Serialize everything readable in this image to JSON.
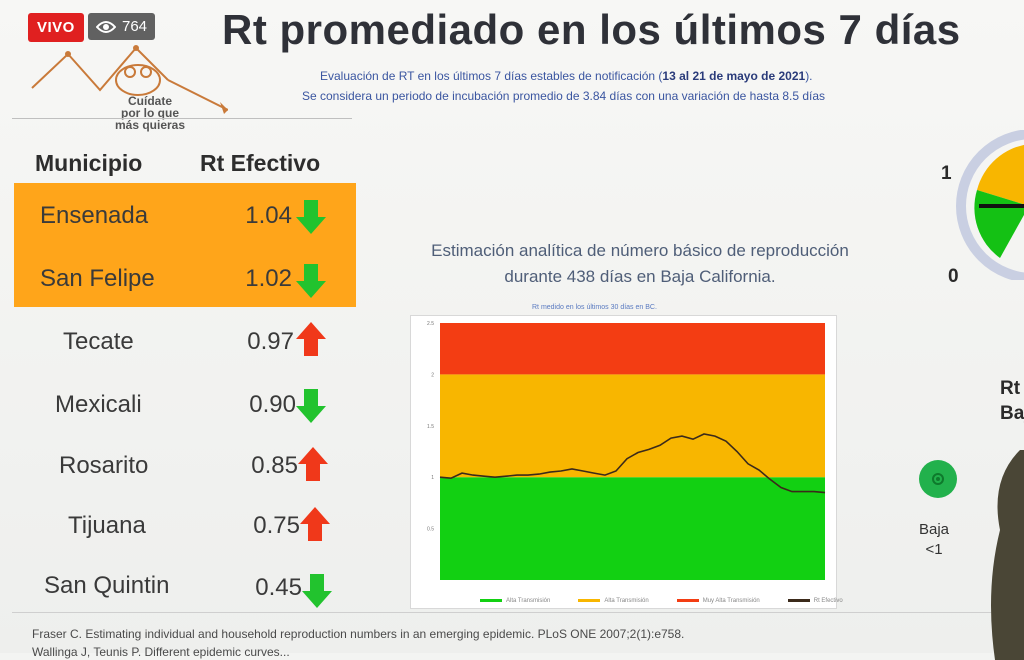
{
  "stream": {
    "live_label": "VIVO",
    "viewers": "764"
  },
  "logo": {
    "text": "Cuídate\npor lo que\nmás quieras"
  },
  "title": "Rt promediado en los últimos 7 días",
  "subtitle_line1_pre": "Evaluación de RT en los últimos 7 días estables de notificación (",
  "subtitle_line1_bold": "13 al 21 de mayo de 2021",
  "subtitle_line1_post": ").",
  "subtitle_line2": "Se considera un periodo de incubación promedio de 3.84 días con una variación de hasta 8.5 días",
  "table": {
    "col_municipio": "Municipio",
    "col_rt": "Rt Efectivo",
    "rows": [
      {
        "name": "Ensenada",
        "value": "1.04",
        "trend": "down",
        "highlight": true
      },
      {
        "name": "San Felipe",
        "value": "1.02",
        "trend": "down",
        "highlight": true
      },
      {
        "name": "Tecate",
        "value": "0.97",
        "trend": "up",
        "highlight": false
      },
      {
        "name": "Mexicali",
        "value": "0.90",
        "trend": "down",
        "highlight": false
      },
      {
        "name": "Rosarito",
        "value": "0.85",
        "trend": "up",
        "highlight": false
      },
      {
        "name": "Tijuana",
        "value": "0.75",
        "trend": "up",
        "highlight": false
      },
      {
        "name": "San Quintin",
        "value": "0.45",
        "trend": "down",
        "highlight": false
      }
    ]
  },
  "colors": {
    "highlight": "#ffa51a",
    "arrow_down": "#22c32e",
    "arrow_up": "#f0381a",
    "zone_red": "#f33d13",
    "zone_yellow": "#f8b600",
    "zone_green": "#12d012",
    "line": "#3b2a1a"
  },
  "chart_title_line1": "Estimación analítica de número básico de reproducción",
  "chart_title_line2": "durante 438 días en Baja California.",
  "chart_subtitle": "Rt medido en los últimos 30 días en BC.",
  "chart_data": {
    "type": "line",
    "ylim": [
      0,
      2.5
    ],
    "yticks": [
      "2.5",
      "2",
      "1.5",
      "1",
      "0.5"
    ],
    "zones": [
      {
        "from": 0,
        "to": 1,
        "color": "#12d012"
      },
      {
        "from": 1,
        "to": 2,
        "color": "#f8b600"
      },
      {
        "from": 2,
        "to": 2.5,
        "color": "#f33d13"
      }
    ],
    "series": [
      {
        "values": [
          1.0,
          0.99,
          1.04,
          1.02,
          1.01,
          1.0,
          1.01,
          1.02,
          1.02,
          1.03,
          1.05,
          1.06,
          1.08,
          1.06,
          1.04,
          1.02,
          1.06,
          1.18,
          1.24,
          1.27,
          1.31,
          1.38,
          1.4,
          1.37,
          1.42,
          1.4,
          1.35,
          1.25,
          1.13,
          1.07,
          0.98,
          0.9,
          0.86,
          0.86,
          0.86,
          0.85
        ]
      }
    ]
  },
  "legend": [
    "Alta Transmisión",
    "Alta Transmisión",
    "Muy Alta Transmisión",
    "Rt Efectivo"
  ],
  "footnote1": "Fraser C. Estimating individual and household reproduction numbers in an emerging epidemic. PLoS ONE 2007;2(1):e758.",
  "footnote2": "Wallinga J, Teunis P. Different epidemic curves...",
  "gauge": {
    "tick_high": "1",
    "tick_low": "0"
  },
  "side_panel": {
    "rt_label": "Rt",
    "region_label": "Baja",
    "level_label": "Baja",
    "level_value": "<1"
  }
}
